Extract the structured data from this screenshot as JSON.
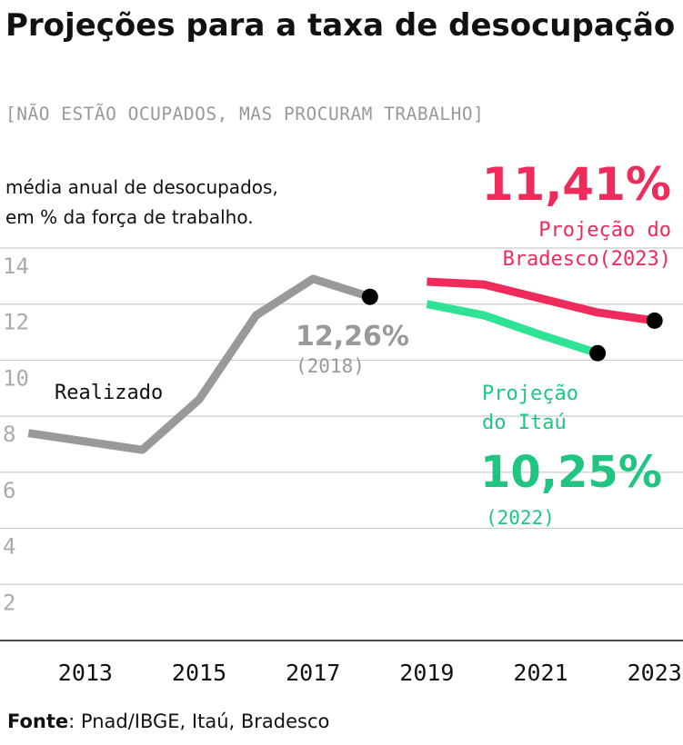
{
  "header": {
    "title": "Projeções para a taxa de desocupação",
    "subtitle": "[NÃO ESTÃO OCUPADOS, MAS PROCURAM TRABALHO]"
  },
  "source": {
    "label": "Fonte",
    "text": ": Pnad/IBGE, Itaú, Bradesco"
  },
  "colors": {
    "realizado": "#999999",
    "bradesco": "#ee2b5a",
    "itau": "#2ee394",
    "itau_text": "#20c582",
    "grid": "#cccccc",
    "axis": "#111111",
    "dot": "#000000"
  },
  "chart_data": {
    "type": "line",
    "ylabel": [
      "média anual de desocupados,",
      "em % da força de trabalho."
    ],
    "xlabel": "",
    "xlim": [
      2011.5,
      2023.5
    ],
    "ylim": [
      0,
      14
    ],
    "yticks": [
      2,
      4,
      6,
      8,
      10,
      12,
      14
    ],
    "ytick_labels": [
      "2",
      "4",
      "6",
      "8",
      "10",
      "12",
      "14"
    ],
    "xticks": [
      2013,
      2015,
      2017,
      2019,
      2021,
      2023
    ],
    "xtick_labels": [
      "2013",
      "2015",
      "2017",
      "2019",
      "2021",
      "2023"
    ],
    "grid": "horizontal",
    "series": [
      {
        "key": "realizado",
        "name": "Realizado",
        "x": [
          2012,
          2013,
          2014,
          2015,
          2016,
          2017,
          2018
        ],
        "y": [
          7.4,
          7.1,
          6.8,
          8.6,
          11.6,
          12.9,
          12.26
        ],
        "endpoint": {
          "value": "12,26%",
          "year": "(2018)"
        }
      },
      {
        "key": "bradesco",
        "name": "Projeção do Bradesco(2023)",
        "label_lines": [
          "Projeção do",
          "Bradesco(2023)"
        ],
        "x": [
          2019,
          2020,
          2021,
          2022,
          2023
        ],
        "y": [
          12.8,
          12.7,
          12.2,
          11.7,
          11.41
        ],
        "endpoint": {
          "value": "11,41%"
        }
      },
      {
        "key": "itau",
        "name": "Projeção do Itaú",
        "label_lines": [
          "Projeção",
          "do Itaú"
        ],
        "x": [
          2019,
          2020,
          2021,
          2022
        ],
        "y": [
          12.0,
          11.6,
          10.9,
          10.25
        ],
        "endpoint": {
          "value": "10,25%",
          "year": "(2022)"
        }
      }
    ]
  }
}
